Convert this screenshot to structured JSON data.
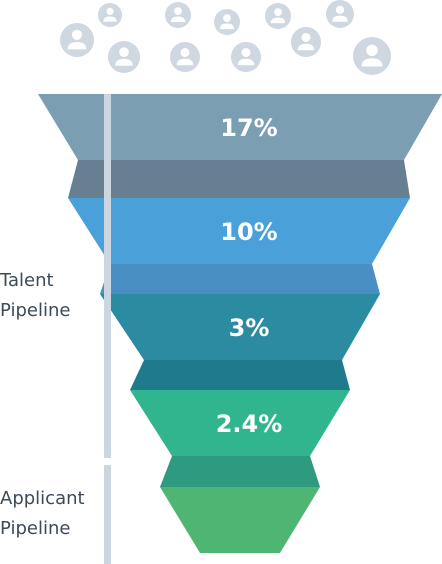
{
  "labels": {
    "talent": "Talent\nPipeline",
    "applicant": "Applicant\nPipeline"
  },
  "stages": [
    {
      "value": "17%",
      "color": "#7c9eb2",
      "band_color": "#667f91"
    },
    {
      "value": "10%",
      "color": "#4aa0d8",
      "band_color": "#4a8fc3"
    },
    {
      "value": "3%",
      "color": "#2a8ba1",
      "band_color": "#1e7a8c"
    },
    {
      "value": "2.4%",
      "color": "#30b58f",
      "band_color": "#2e9a7f"
    },
    {
      "value": "",
      "color": "#4fb573"
    }
  ],
  "bar_color": "#ccd6e0",
  "people_icon_color": "#cfd7e0"
}
